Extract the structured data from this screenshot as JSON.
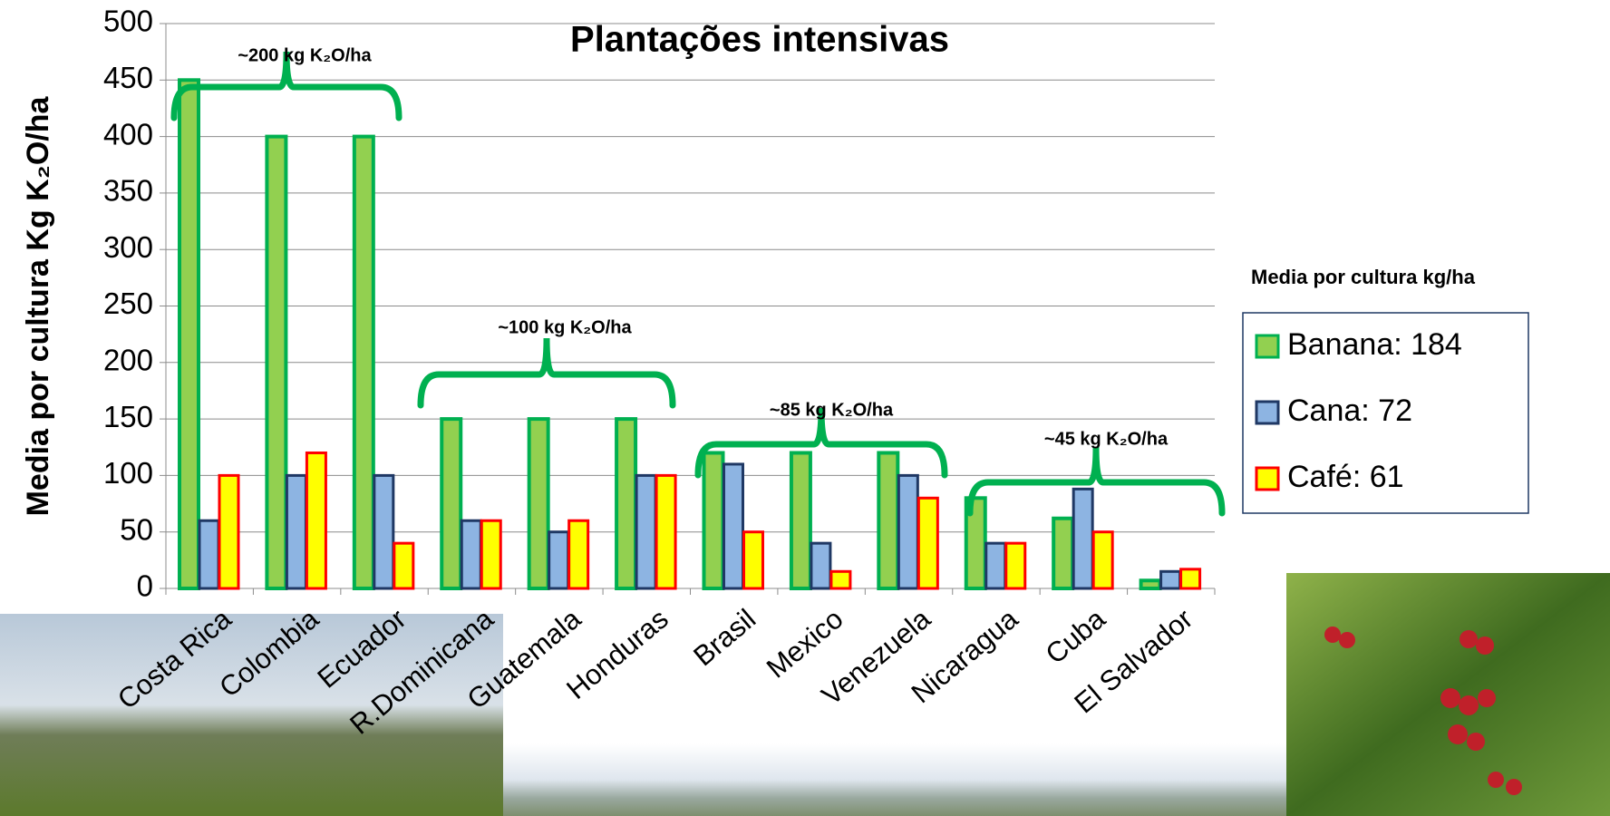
{
  "chart_data": {
    "type": "bar",
    "title": "Plantações intensivas",
    "y_label": "Media por cultura Kg K₂O/ha",
    "categories": [
      "Costa Rica",
      "Colombia",
      "Ecuador",
      "R.Dominicana",
      "Guatemala",
      "Honduras",
      "Brasil",
      "Mexico",
      "Venezuela",
      "Nicaragua",
      "Cuba",
      "El Salvador"
    ],
    "series": [
      {
        "name": "Banana: 184",
        "color": "#92d050",
        "edgecolor": "#00b050",
        "values": [
          450,
          400,
          400,
          150,
          150,
          150,
          120,
          120,
          120,
          80,
          62,
          7
        ]
      },
      {
        "name": "Cana: 72",
        "color": "#8db4e2",
        "edgecolor": "#1f3864",
        "values": [
          60,
          100,
          100,
          60,
          50,
          100,
          110,
          40,
          100,
          40,
          88,
          15
        ]
      },
      {
        "name": "Café: 61",
        "color": "#ffff00",
        "edgecolor": "#ff0000",
        "values": [
          100,
          120,
          40,
          60,
          60,
          100,
          50,
          15,
          80,
          40,
          50,
          17
        ]
      }
    ],
    "ylim": [
      0,
      500
    ],
    "yticks": [
      0,
      50,
      100,
      150,
      200,
      250,
      300,
      350,
      400,
      450,
      500
    ],
    "grid": true,
    "legend_title": "Media  por cultura kg/ha",
    "annotations": [
      "~200 kg K₂O/ha",
      "~100 kg K₂O/ha",
      "~85 kg K₂O/ha",
      "~45 kg K₂O/ha"
    ]
  }
}
